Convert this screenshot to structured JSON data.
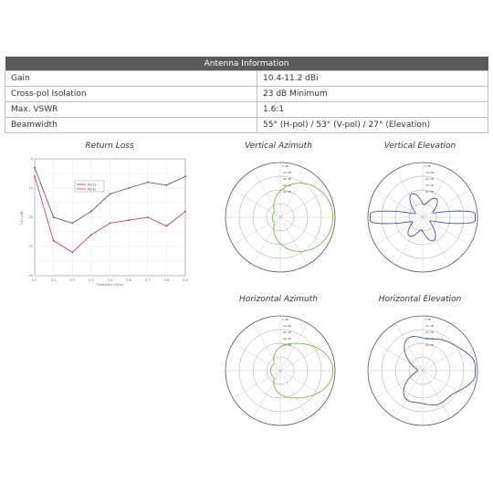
{
  "table": {
    "header": "Antenna Information",
    "rows": [
      {
        "label": "Gain",
        "value": "10.4-11.2 dBi"
      },
      {
        "label": "Cross-pol Isolation",
        "value": "23 dB Minimum"
      },
      {
        "label": "Max. VSWR",
        "value": "1.6:1"
      },
      {
        "label": "Beamwidth",
        "value": "55° (H-pol) / 53° (V-pol) / 27° (Elevation)"
      }
    ]
  },
  "charts": {
    "return_loss_title": "Return Loss",
    "vertical_azimuth_title": "Vertical Azimuth",
    "vertical_elevation_title": "Vertical Elevation",
    "horizontal_azimuth_title": "Horizontal Azimuth",
    "horizontal_elevation_title": "Horizontal Elevation"
  },
  "chart_data": [
    {
      "type": "line",
      "title": "Return Loss",
      "xlabel": "Frequency (GHz)",
      "ylabel": "S11 (dB)",
      "x": [
        5.1,
        5.2,
        5.3,
        5.4,
        5.5,
        5.6,
        5.7,
        5.8,
        5.9
      ],
      "xlim": [
        5.1,
        5.9
      ],
      "ylim": [
        -40,
        0
      ],
      "series": [
        {
          "name": "Port1",
          "color": "#555555",
          "values": [
            -3,
            -20,
            -22,
            -18,
            -12,
            -10,
            -8,
            -9,
            -6
          ]
        },
        {
          "name": "Port2",
          "color": "#c0306a",
          "values": [
            -6,
            -28,
            -32,
            -26,
            -22,
            -21,
            -20,
            -23,
            -18
          ]
        }
      ]
    },
    {
      "type": "polar",
      "title": "Vertical Azimuth",
      "color": "#6aae3c",
      "rings_db": [
        "0 dB",
        "-10 dB",
        "-20 dB",
        "-30 dB",
        "-40 dB"
      ]
    },
    {
      "type": "polar",
      "title": "Vertical Elevation",
      "color": "#2d3f8f",
      "rings_db": [
        "0 dB",
        "-10 dB",
        "-20 dB",
        "-30 dB",
        "-40 dB"
      ]
    },
    {
      "type": "polar",
      "title": "Horizontal Azimuth",
      "color": "#6aae3c",
      "rings_db": [
        "0 dB",
        "-10 dB",
        "-20 dB",
        "-30 dB",
        "-40 dB"
      ]
    },
    {
      "type": "polar",
      "title": "Horizontal Elevation",
      "color": "#2d3f8f",
      "rings_db": [
        "0 dB",
        "-10 dB",
        "-20 dB",
        "-30 dB",
        "-40 dB"
      ]
    }
  ]
}
